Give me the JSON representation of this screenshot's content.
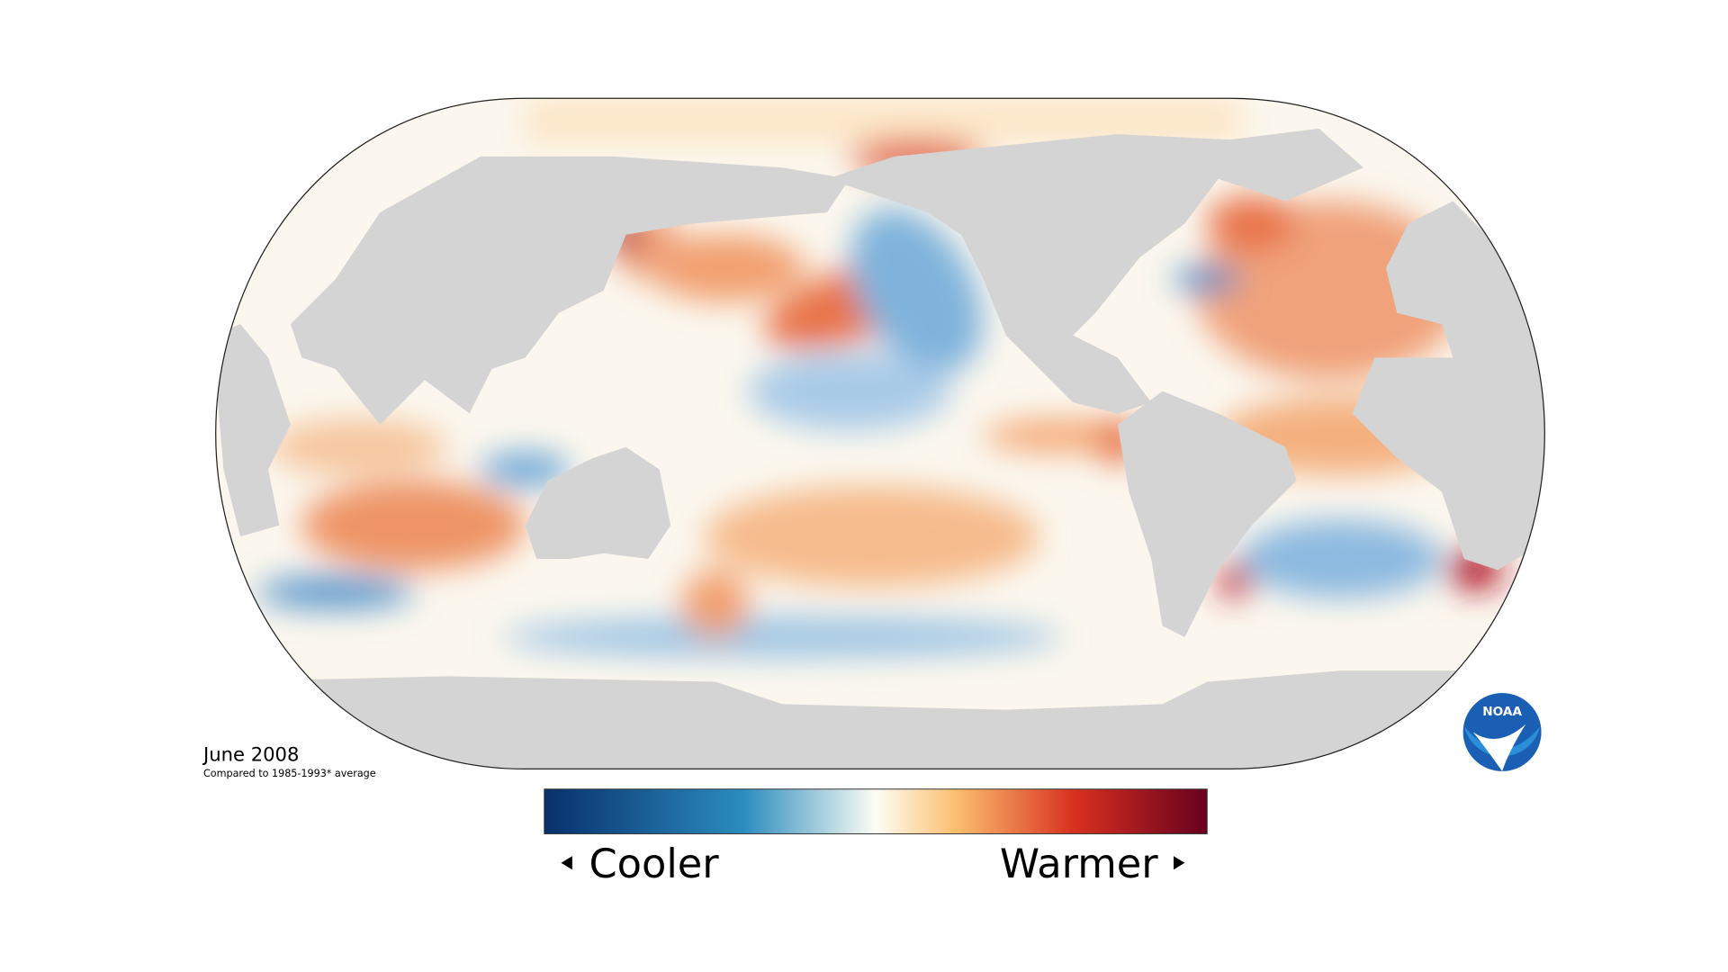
{
  "map": {
    "date": "June 2008",
    "subtitle": "Compared to 1985-1993* average"
  },
  "legend": {
    "low_label": "Cooler",
    "high_label": "Warmer"
  },
  "logo": {
    "text": "NOAA"
  }
}
